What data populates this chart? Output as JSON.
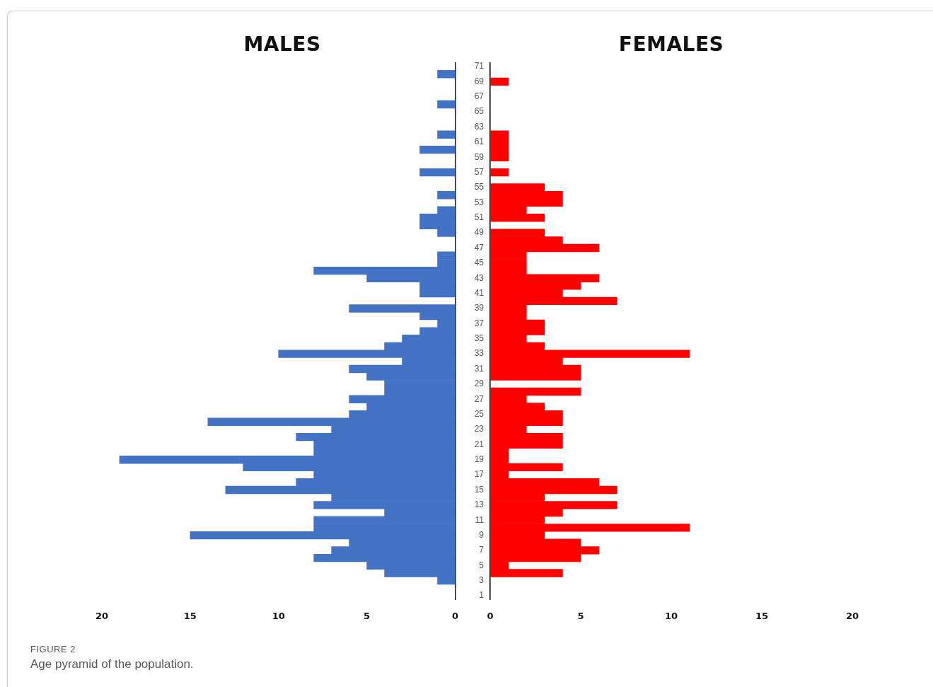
{
  "chart_data": [
    {
      "type": "bar",
      "orientation": "horizontal",
      "title": "MALES",
      "categories": [
        "71",
        null,
        "69",
        null,
        "67",
        null,
        "65",
        null,
        "63",
        null,
        "61",
        null,
        "59",
        null,
        "57",
        null,
        "55",
        null,
        "53",
        null,
        "51",
        null,
        "49",
        null,
        "47",
        null,
        "45",
        null,
        "43",
        null,
        "41",
        null,
        "39",
        null,
        "37",
        null,
        "35",
        null,
        "33",
        null,
        "31",
        null,
        "29",
        null,
        "27",
        null,
        "25",
        null,
        "23",
        null,
        "21",
        null,
        "19",
        null,
        "17",
        null,
        "15",
        null,
        "13",
        null,
        "11",
        null,
        "9",
        null,
        "7",
        null,
        "5",
        null,
        "3",
        null,
        "1"
      ],
      "values": [
        0,
        1,
        0,
        0,
        0,
        1,
        0,
        0,
        0,
        1,
        0,
        2,
        0,
        0,
        2,
        0,
        0,
        1,
        0,
        1,
        2,
        2,
        1,
        0,
        0,
        1,
        1,
        8,
        5,
        2,
        2,
        0,
        6,
        2,
        1,
        2,
        3,
        4,
        10,
        3,
        6,
        5,
        4,
        4,
        6,
        5,
        6,
        14,
        7,
        9,
        8,
        8,
        19,
        12,
        8,
        9,
        13,
        7,
        8,
        4,
        8,
        8,
        15,
        6,
        7,
        8,
        5,
        4,
        1,
        0,
        0
      ],
      "color": "#4472c4",
      "xlim": [
        20,
        0
      ],
      "xticks": [
        20,
        15,
        10,
        5,
        0
      ],
      "tick_labels": "x",
      "annotations": [
        "FIGURE 2",
        "Age pyramid of the population."
      ]
    },
    {
      "type": "bar",
      "orientation": "horizontal",
      "title": "FEMALES",
      "categories": [
        "71",
        null,
        "69",
        null,
        "67",
        null,
        "65",
        null,
        "63",
        null,
        "61",
        null,
        "59",
        null,
        "57",
        null,
        "55",
        null,
        "53",
        null,
        "51",
        null,
        "49",
        null,
        "47",
        null,
        "45",
        null,
        "43",
        null,
        "41",
        null,
        "39",
        null,
        "37",
        null,
        "35",
        null,
        "33",
        null,
        "31",
        null,
        "29",
        null,
        "27",
        null,
        "25",
        null,
        "23",
        null,
        "21",
        null,
        "19",
        null,
        "17",
        null,
        "15",
        null,
        "13",
        null,
        "11",
        null,
        "9",
        null,
        "7",
        null,
        "5",
        null,
        "3",
        null,
        "1"
      ],
      "values": [
        0,
        0,
        1,
        0,
        0,
        0,
        0,
        0,
        0,
        1,
        1,
        1,
        1,
        0,
        1,
        0,
        3,
        4,
        4,
        2,
        3,
        0,
        3,
        4,
        6,
        2,
        2,
        2,
        6,
        5,
        4,
        7,
        2,
        2,
        3,
        3,
        2,
        3,
        11,
        4,
        5,
        5,
        0,
        5,
        2,
        3,
        4,
        4,
        2,
        4,
        4,
        1,
        1,
        4,
        1,
        6,
        7,
        3,
        7,
        4,
        3,
        11,
        3,
        5,
        6,
        5,
        1,
        4,
        0,
        0,
        0
      ],
      "color": "#ff0000",
      "xlim": [
        0,
        20
      ],
      "xticks": [
        0,
        5,
        10,
        15,
        20
      ]
    }
  ]
}
